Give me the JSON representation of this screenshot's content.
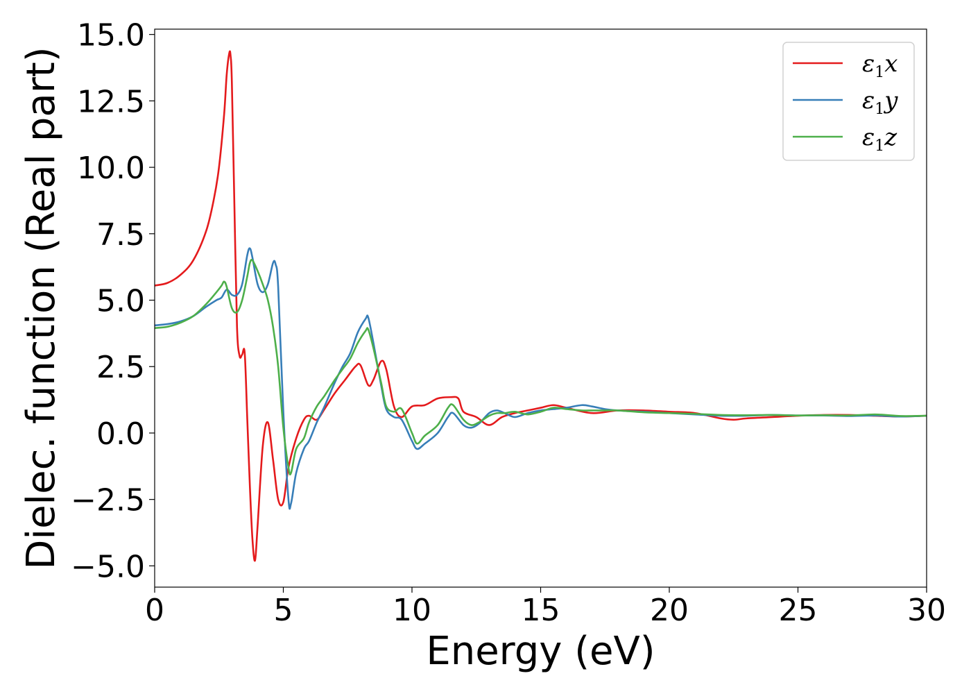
{
  "chart_data": {
    "type": "line",
    "title": "",
    "xlabel": "Energy (eV)",
    "ylabel": "Dielec. function (Real part)",
    "xlim": [
      0,
      30
    ],
    "ylim": [
      -5.8,
      15.2
    ],
    "xticks": [
      0,
      5,
      10,
      15,
      20,
      25,
      30
    ],
    "xtick_labels": [
      "0",
      "5",
      "10",
      "15",
      "20",
      "25",
      "30"
    ],
    "yticks": [
      -5.0,
      -2.5,
      0.0,
      2.5,
      5.0,
      7.5,
      10.0,
      12.5,
      15.0
    ],
    "ytick_labels": [
      "−5.0",
      "−2.5",
      "0.0",
      "2.5",
      "5.0",
      "7.5",
      "10.0",
      "12.5",
      "15.0"
    ],
    "grid": false,
    "legend_position": "top-right",
    "series": [
      {
        "name": "ε₁x",
        "legend_base": "ε",
        "legend_sub": "1",
        "legend_var": "x",
        "color": "#e41a1c",
        "x": [
          0,
          0.5,
          1.0,
          1.5,
          2.0,
          2.3,
          2.5,
          2.7,
          2.8,
          2.9,
          2.95,
          3.0,
          3.1,
          3.2,
          3.3,
          3.4,
          3.5,
          3.6,
          3.7,
          3.8,
          3.9,
          4.0,
          4.2,
          4.4,
          4.6,
          4.8,
          5.0,
          5.2,
          5.5,
          5.8,
          6.0,
          6.3,
          6.6,
          7.0,
          7.4,
          7.8,
          8.0,
          8.3,
          8.5,
          8.8,
          9.0,
          9.3,
          9.6,
          10.0,
          10.5,
          11.0,
          11.5,
          11.8,
          12.0,
          12.5,
          13.0,
          13.5,
          14.0,
          14.5,
          15.0,
          15.5,
          16.0,
          17.0,
          18.0,
          19.0,
          20.0,
          21.0,
          22.0,
          22.5,
          23.0,
          24.0,
          25.0,
          26.0,
          27.0,
          28.0,
          29.0,
          30.0
        ],
        "y": [
          5.55,
          5.65,
          5.95,
          6.5,
          7.6,
          8.8,
          10.0,
          12.0,
          13.5,
          14.3,
          14.2,
          13.2,
          8.5,
          4.0,
          2.9,
          2.95,
          3.0,
          0.5,
          -2.0,
          -4.0,
          -4.8,
          -3.5,
          -0.5,
          0.4,
          -1.0,
          -2.5,
          -2.6,
          -1.3,
          -0.2,
          0.5,
          0.65,
          0.5,
          0.9,
          1.5,
          2.0,
          2.5,
          2.55,
          1.8,
          2.0,
          2.7,
          2.4,
          1.0,
          0.6,
          1.0,
          1.05,
          1.3,
          1.35,
          1.3,
          0.8,
          0.6,
          0.3,
          0.6,
          0.75,
          0.85,
          0.95,
          1.05,
          0.95,
          0.75,
          0.85,
          0.85,
          0.8,
          0.75,
          0.55,
          0.5,
          0.55,
          0.6,
          0.65,
          0.68,
          0.68,
          0.65,
          0.62,
          0.65
        ]
      },
      {
        "name": "ε₁y",
        "legend_base": "ε",
        "legend_sub": "1",
        "legend_var": "y",
        "color": "#377eb8",
        "x": [
          0,
          0.5,
          1.0,
          1.5,
          2.0,
          2.4,
          2.6,
          2.8,
          3.0,
          3.2,
          3.4,
          3.6,
          3.7,
          3.8,
          4.0,
          4.2,
          4.4,
          4.6,
          4.7,
          4.8,
          5.0,
          5.2,
          5.3,
          5.5,
          5.8,
          6.0,
          6.3,
          6.6,
          7.0,
          7.3,
          7.6,
          7.9,
          8.2,
          8.3,
          8.5,
          8.8,
          9.0,
          9.3,
          9.6,
          10.0,
          10.2,
          10.5,
          11.0,
          11.4,
          11.6,
          12.0,
          12.3,
          12.6,
          13.0,
          13.3,
          13.6,
          14.0,
          14.5,
          15.0,
          15.5,
          16.0,
          16.6,
          17.0,
          17.5,
          18.0,
          19.0,
          20.0,
          21.0,
          22.0,
          23.0,
          24.0,
          25.0,
          26.0,
          27.0,
          28.0,
          29.0,
          30.0
        ],
        "y": [
          4.05,
          4.1,
          4.2,
          4.4,
          4.75,
          5.0,
          5.1,
          5.4,
          5.2,
          5.2,
          5.6,
          6.7,
          6.95,
          6.6,
          5.6,
          5.3,
          5.6,
          6.4,
          6.35,
          5.5,
          0.8,
          -2.5,
          -2.65,
          -1.5,
          -0.6,
          -0.3,
          0.4,
          1.0,
          1.9,
          2.5,
          3.0,
          3.8,
          4.3,
          4.35,
          3.4,
          1.8,
          0.9,
          0.6,
          0.5,
          -0.3,
          -0.6,
          -0.4,
          0.0,
          0.6,
          0.75,
          0.3,
          0.2,
          0.35,
          0.75,
          0.85,
          0.75,
          0.6,
          0.75,
          0.85,
          0.9,
          0.95,
          1.05,
          1.0,
          0.9,
          0.85,
          0.8,
          0.75,
          0.7,
          0.65,
          0.65,
          0.68,
          0.66,
          0.66,
          0.64,
          0.66,
          0.62,
          0.65
        ]
      },
      {
        "name": "ε₁z",
        "legend_base": "ε",
        "legend_sub": "1",
        "legend_var": "z",
        "color": "#4daf4a",
        "x": [
          0,
          0.5,
          1.0,
          1.5,
          2.0,
          2.4,
          2.6,
          2.7,
          2.8,
          3.0,
          3.2,
          3.4,
          3.6,
          3.7,
          3.8,
          4.0,
          4.2,
          4.4,
          4.6,
          4.8,
          5.0,
          5.2,
          5.3,
          5.5,
          5.8,
          6.0,
          6.3,
          6.6,
          7.0,
          7.3,
          7.6,
          7.9,
          8.2,
          8.3,
          8.5,
          8.8,
          9.0,
          9.3,
          9.6,
          10.0,
          10.2,
          10.5,
          11.0,
          11.4,
          11.6,
          12.0,
          12.3,
          12.6,
          13.0,
          13.3,
          13.6,
          14.0,
          14.5,
          15.0,
          15.5,
          16.0,
          16.6,
          17.0,
          17.5,
          18.0,
          19.0,
          20.0,
          21.0,
          22.0,
          23.0,
          24.0,
          25.0,
          26.0,
          27.0,
          28.0,
          29.0,
          30.0
        ],
        "y": [
          3.95,
          4.0,
          4.15,
          4.4,
          4.85,
          5.3,
          5.55,
          5.7,
          5.5,
          4.7,
          4.55,
          5.0,
          5.9,
          6.4,
          6.5,
          6.1,
          5.6,
          5.0,
          4.0,
          2.5,
          0.2,
          -1.3,
          -1.5,
          -0.6,
          -0.2,
          0.4,
          1.0,
          1.4,
          2.0,
          2.4,
          2.8,
          3.4,
          3.85,
          3.9,
          3.2,
          1.9,
          1.0,
          0.8,
          0.9,
          0.0,
          -0.4,
          -0.1,
          0.3,
          0.95,
          1.05,
          0.5,
          0.3,
          0.4,
          0.65,
          0.75,
          0.75,
          0.8,
          0.7,
          0.8,
          0.95,
          0.9,
          0.85,
          0.85,
          0.85,
          0.85,
          0.78,
          0.75,
          0.72,
          0.68,
          0.67,
          0.68,
          0.66,
          0.67,
          0.66,
          0.7,
          0.64,
          0.65
        ]
      }
    ]
  }
}
